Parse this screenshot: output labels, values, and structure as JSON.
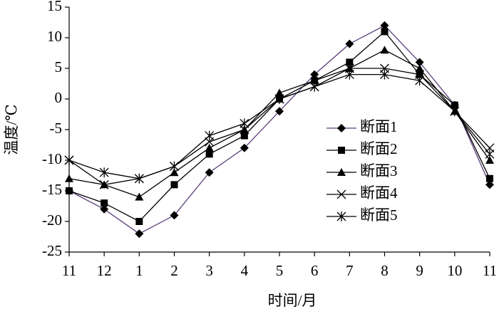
{
  "chart_data": {
    "type": "line",
    "x_label": "时间/月",
    "y_label": "温度/℃",
    "categories": [
      "11",
      "12",
      "1",
      "2",
      "3",
      "4",
      "5",
      "6",
      "7",
      "8",
      "9",
      "10",
      "11"
    ],
    "ylim": [
      -25,
      15
    ],
    "yticks": [
      -25,
      -20,
      -15,
      -10,
      -5,
      0,
      5,
      10,
      15
    ],
    "grid": false,
    "legend": "right",
    "series": [
      {
        "name": "断面1",
        "color": "#5b3f7a",
        "marker": "diamond",
        "values": [
          -15,
          -18,
          -22,
          -19,
          -12,
          -8,
          -2,
          4,
          9,
          12,
          6,
          -1,
          -14
        ]
      },
      {
        "name": "断面2",
        "color": "#000000",
        "marker": "square",
        "values": [
          -15,
          -17,
          -20,
          -14,
          -9,
          -6,
          0,
          3,
          6,
          11,
          4,
          -1,
          -13
        ]
      },
      {
        "name": "断面3",
        "color": "#000000",
        "marker": "triangle",
        "values": [
          -13,
          -14,
          -16,
          -12,
          -8,
          -5,
          1,
          3,
          5,
          8,
          5,
          -2,
          -10
        ]
      },
      {
        "name": "断面4",
        "color": "#000000",
        "marker": "x",
        "values": [
          -10,
          -14,
          -13,
          -11,
          -7,
          -5,
          0,
          2,
          5,
          5,
          4,
          -2,
          -8
        ]
      },
      {
        "name": "断面5",
        "color": "#000000",
        "marker": "asterisk",
        "values": [
          -10,
          -12,
          -13,
          -11,
          -6,
          -4,
          0,
          2,
          4,
          4,
          3,
          -2,
          -9
        ]
      }
    ]
  }
}
